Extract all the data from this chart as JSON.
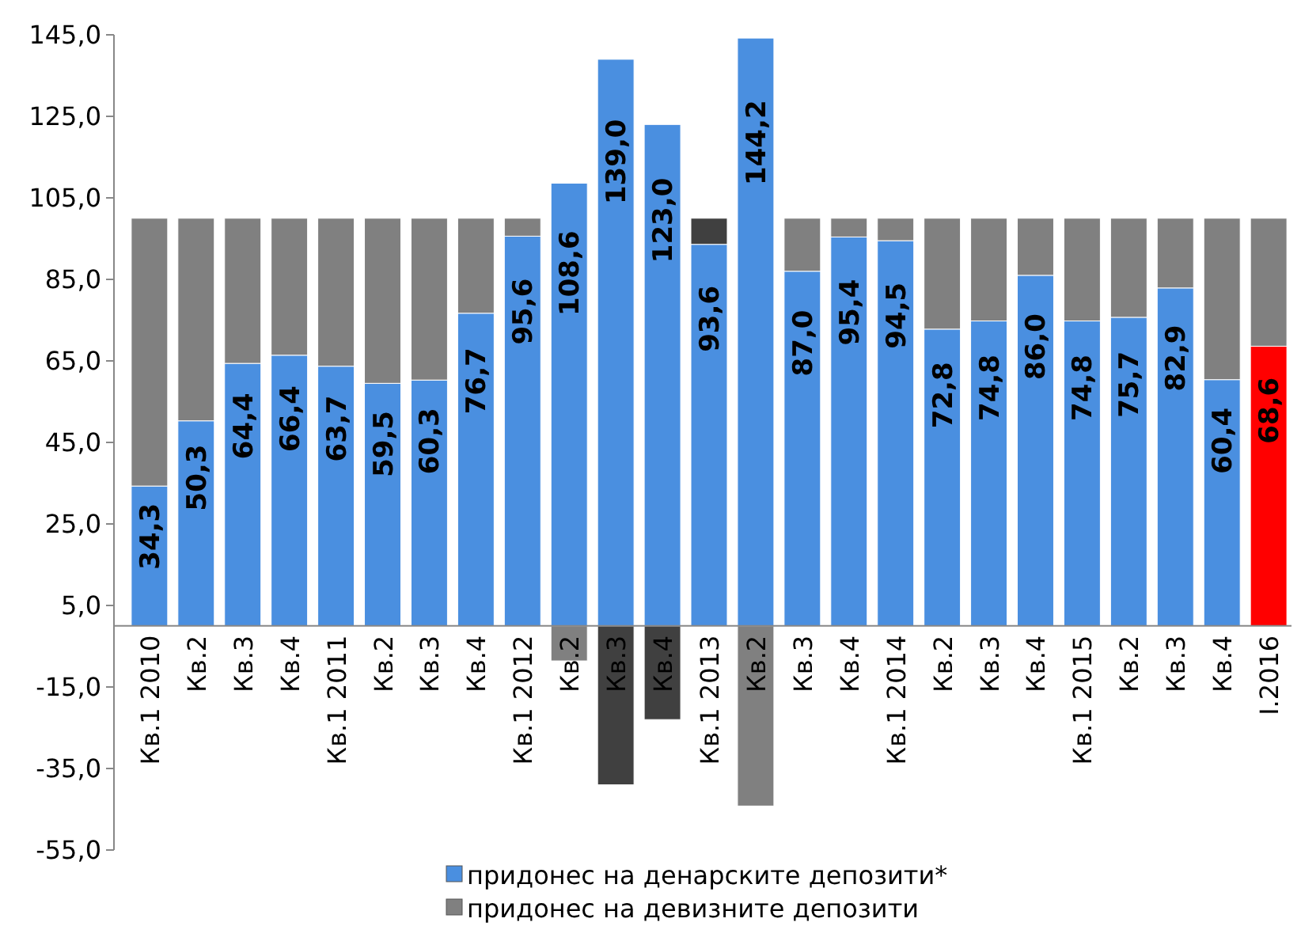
{
  "chart_data": {
    "type": "bar",
    "stacked": true,
    "categories": [
      "Кв.1 2010",
      "Кв.2",
      "Кв.3",
      "Кв.4",
      "Кв.1 2011",
      "Кв.2",
      "Кв.3",
      "Кв.4",
      "Кв.1 2012",
      "Кв.2",
      "Кв.3",
      "Кв.4",
      "Кв.1 2013",
      "Кв.2",
      "Кв.3",
      "Кв.4",
      "Кв.1 2014",
      "Кв.2",
      "Кв.3",
      "Кв.4",
      "Кв.1 2015",
      "Кв.2",
      "Кв.3",
      "Кв.4",
      "I.2016"
    ],
    "series": [
      {
        "name": "придонес на денарските депозити*",
        "color": "#4a8fe0",
        "colors": [
          "#4a8fe0",
          "#4a8fe0",
          "#4a8fe0",
          "#4a8fe0",
          "#4a8fe0",
          "#4a8fe0",
          "#4a8fe0",
          "#4a8fe0",
          "#4a8fe0",
          "#4a8fe0",
          "#4a8fe0",
          "#4a8fe0",
          "#4a8fe0",
          "#4a8fe0",
          "#4a8fe0",
          "#4a8fe0",
          "#4a8fe0",
          "#4a8fe0",
          "#4a8fe0",
          "#4a8fe0",
          "#4a8fe0",
          "#4a8fe0",
          "#4a8fe0",
          "#4a8fe0",
          "#ff0000"
        ],
        "values": [
          34.3,
          50.3,
          64.4,
          66.4,
          63.7,
          59.5,
          60.3,
          76.7,
          95.6,
          108.6,
          139.0,
          123.0,
          93.6,
          144.2,
          87.0,
          95.4,
          94.5,
          72.8,
          74.8,
          86.0,
          74.8,
          75.7,
          82.9,
          60.4,
          68.6
        ],
        "value_labels": [
          "34,3",
          "50,3",
          "64,4",
          "66,4",
          "63,7",
          "59,5",
          "60,3",
          "76,7",
          "95,6",
          "108,6",
          "139,0",
          "123,0",
          "93,6",
          "144,2",
          "87,0",
          "95,4",
          "94,5",
          "72,8",
          "74,8",
          "86,0",
          "74,8",
          "75,7",
          "82,9",
          "60,4",
          "68,6"
        ]
      },
      {
        "name": "придонес на девизните депозити",
        "color": "#808080",
        "colors": [
          "#808080",
          "#808080",
          "#808080",
          "#808080",
          "#808080",
          "#808080",
          "#808080",
          "#808080",
          "#808080",
          "#808080",
          "#404040",
          "#404040",
          "#404040",
          "#808080",
          "#808080",
          "#808080",
          "#808080",
          "#808080",
          "#808080",
          "#808080",
          "#808080",
          "#808080",
          "#808080",
          "#808080",
          "#808080"
        ],
        "values": [
          65.7,
          49.7,
          35.6,
          33.6,
          36.3,
          40.5,
          39.7,
          23.3,
          4.4,
          -8.6,
          -39.0,
          -23.0,
          6.4,
          -44.2,
          13.0,
          4.6,
          5.5,
          27.2,
          25.2,
          14.0,
          25.2,
          24.3,
          17.1,
          39.6,
          31.4
        ]
      }
    ],
    "ylim": [
      -55,
      145
    ],
    "yticks": [
      {
        "value": -55,
        "label": "-55,0"
      },
      {
        "value": -35,
        "label": "-35,0"
      },
      {
        "value": -15,
        "label": "-15,0"
      },
      {
        "value": 5,
        "label": "5,0"
      },
      {
        "value": 25,
        "label": "25,0"
      },
      {
        "value": 45,
        "label": "45,0"
      },
      {
        "value": 65,
        "label": "65,0"
      },
      {
        "value": 85,
        "label": "85,0"
      },
      {
        "value": 105,
        "label": "105,0"
      },
      {
        "value": 125,
        "label": "125,0"
      },
      {
        "value": 145,
        "label": "145,0"
      }
    ],
    "legend": "bottom",
    "grid": false
  }
}
